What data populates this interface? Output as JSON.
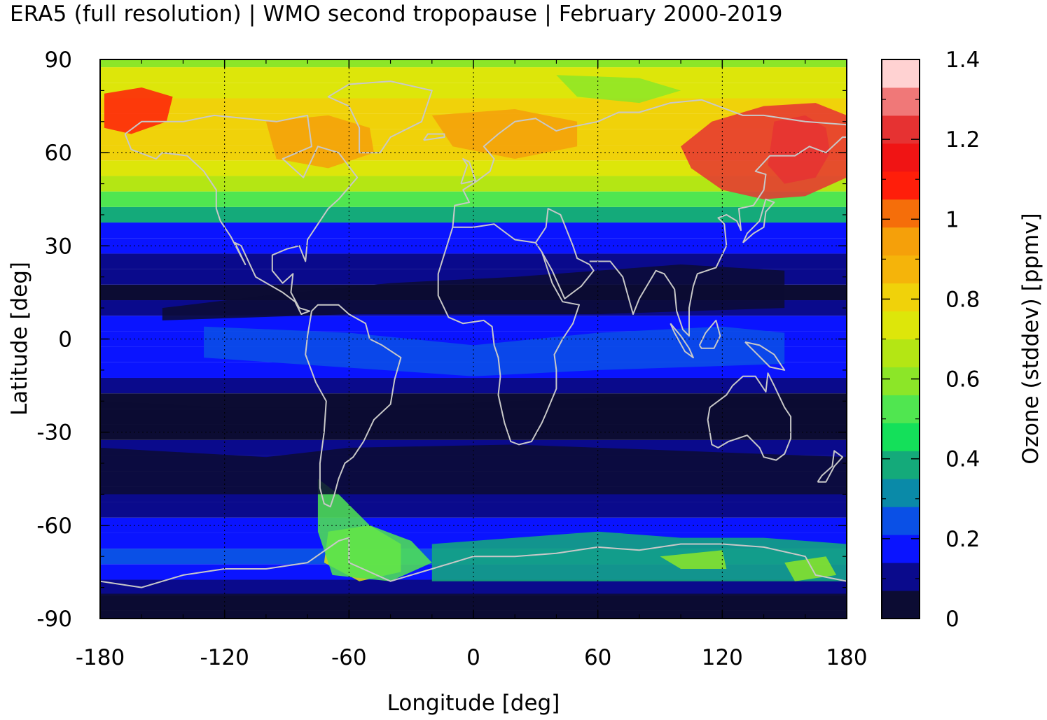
{
  "chart_data": {
    "type": "heatmap",
    "title": "ERA5 (full resolution) | WMO second tropopause | February 2000-2019",
    "xlabel": "Longitude [deg]",
    "ylabel": "Latitude [deg]",
    "xlim": [
      -180,
      180
    ],
    "ylim": [
      -90,
      90
    ],
    "xticks": [
      -180,
      -120,
      -60,
      0,
      60,
      120,
      180
    ],
    "xtick_labels": [
      "-180",
      "-120",
      "-60",
      "0",
      "60",
      "120",
      "180"
    ],
    "yticks": [
      90,
      60,
      30,
      0,
      -30,
      -60,
      -90
    ],
    "ytick_labels": [
      "90",
      "60",
      "30",
      "0",
      "-30",
      "-60",
      "-90"
    ],
    "grid": true,
    "coastlines": true,
    "colorbar": {
      "label": "Ozone (stddev) [ppmv]",
      "range": [
        0,
        1.4
      ],
      "ticks": [
        0,
        0.2,
        0.4,
        0.6,
        0.8,
        1,
        1.2,
        1.4
      ],
      "tick_labels": [
        "0",
        "0.2",
        "0.4",
        "0.6",
        "0.8",
        "1",
        "1.2",
        "1.4"
      ],
      "levels": [
        0,
        0.07,
        0.14,
        0.21,
        0.28,
        0.35,
        0.42,
        0.49,
        0.56,
        0.63,
        0.7,
        0.77,
        0.84,
        0.91,
        0.98,
        1.05,
        1.12,
        1.19,
        1.26,
        1.33,
        1.4
      ],
      "colors": [
        "#0c0c33",
        "#0a0a8c",
        "#0a14ff",
        "#0a50e6",
        "#0a8aa8",
        "#14aa7a",
        "#14e05a",
        "#50e650",
        "#8ce628",
        "#b4e614",
        "#dde60a",
        "#f0d20a",
        "#f5b40a",
        "#f5a00a",
        "#f56e0a",
        "#ff1e0a",
        "#f01414",
        "#e63232",
        "#f07878",
        "#ffd2d2"
      ]
    },
    "zonal_mean_profile": {
      "lat": [
        -90,
        -85,
        -80,
        -75,
        -70,
        -65,
        -60,
        -55,
        -50,
        -45,
        -40,
        -35,
        -30,
        -25,
        -20,
        -15,
        -10,
        -5,
        0,
        5,
        10,
        15,
        20,
        25,
        30,
        35,
        40,
        45,
        50,
        55,
        60,
        65,
        70,
        75,
        80,
        85,
        90
      ],
      "value": [
        0.05,
        0.06,
        0.08,
        0.18,
        0.22,
        0.2,
        0.16,
        0.12,
        0.1,
        0.09,
        0.08,
        0.07,
        0.06,
        0.05,
        0.05,
        0.12,
        0.15,
        0.17,
        0.18,
        0.15,
        0.1,
        0.05,
        0.07,
        0.1,
        0.14,
        0.2,
        0.35,
        0.5,
        0.65,
        0.74,
        0.8,
        0.83,
        0.82,
        0.8,
        0.75,
        0.7,
        0.62
      ]
    }
  }
}
